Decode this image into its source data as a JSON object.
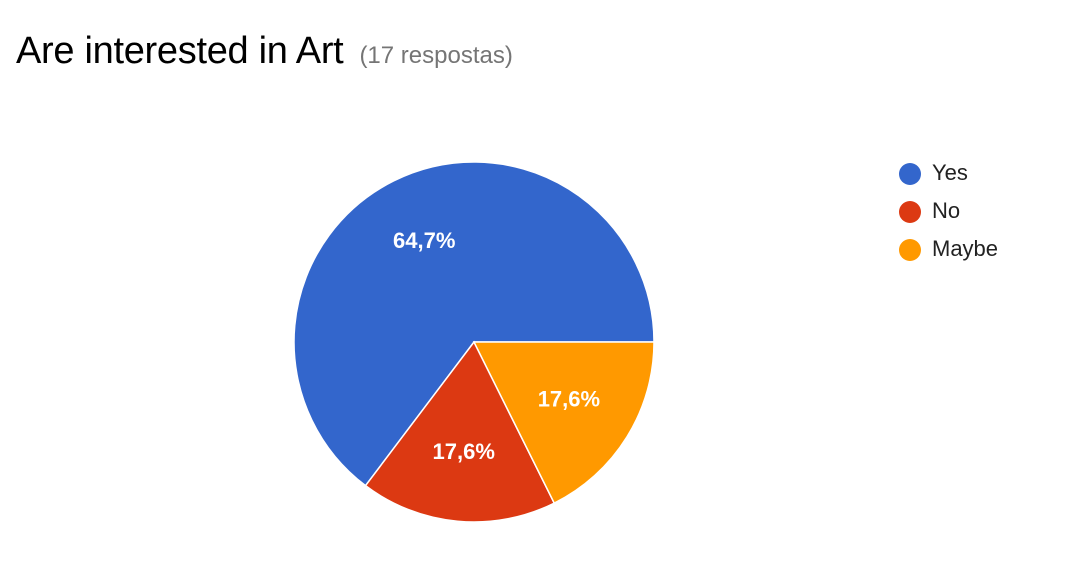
{
  "header": {
    "title": "Are interested in Art",
    "subtitle": "(17 respostas)"
  },
  "chart_data": {
    "type": "pie",
    "title": "Are interested in Art",
    "subtitle": "(17 respostas)",
    "total_responses": 17,
    "legend_position": "right",
    "slices": [
      {
        "name": "Yes",
        "value": 11,
        "percent": 64.7,
        "label": "64,7%",
        "color": "#3366cc"
      },
      {
        "name": "No",
        "value": 3,
        "percent": 17.6,
        "label": "17,6%",
        "color": "#dc3912"
      },
      {
        "name": "Maybe",
        "value": 3,
        "percent": 17.6,
        "label": "17,6%",
        "color": "#ff9900"
      }
    ]
  }
}
